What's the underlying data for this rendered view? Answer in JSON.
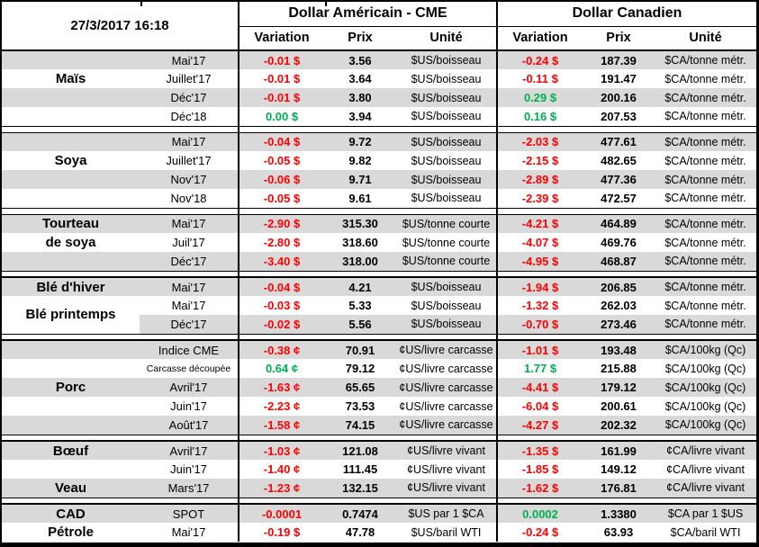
{
  "header": {
    "datetime": "27/3/2017 16:18",
    "us_title": "Dollar Américain - CME",
    "ca_title": "Dollar Canadien",
    "col_variation": "Variation",
    "col_prix": "Prix",
    "col_unite": "Unité"
  },
  "colors": {
    "negative": "#FF0000",
    "positive": "#00B050",
    "row_shade": "#D9D9D9"
  },
  "groups": [
    {
      "name": "Maïs",
      "labels": [
        {
          "row": 1,
          "text": "Maïs"
        }
      ],
      "rows": [
        {
          "month": "Mai'17",
          "us": [
            "-0.01 $",
            "3.56",
            "$US/boisseau"
          ],
          "ca": [
            "-0.24 $",
            "187.39",
            "$CA/tonne métr."
          ]
        },
        {
          "month": "Juillet'17",
          "us": [
            "-0.01 $",
            "3.64",
            "$US/boisseau"
          ],
          "ca": [
            "-0.11 $",
            "191.47",
            "$CA/tonne métr."
          ]
        },
        {
          "month": "Déc'17",
          "us": [
            "-0.01 $",
            "3.80",
            "$US/boisseau"
          ],
          "ca": [
            "0.29 $",
            "200.16",
            "$CA/tonne métr."
          ]
        },
        {
          "month": "Déc'18",
          "us": [
            "0.00 $",
            "3.94",
            "$US/boisseau"
          ],
          "ca": [
            "0.16 $",
            "207.53",
            "$CA/tonne métr."
          ]
        }
      ]
    },
    {
      "name": "Soya",
      "labels": [
        {
          "row": 1,
          "text": "Soya"
        }
      ],
      "rows": [
        {
          "month": "Mai'17",
          "us": [
            "-0.04 $",
            "9.72",
            "$US/boisseau"
          ],
          "ca": [
            "-2.03 $",
            "477.61",
            "$CA/tonne métr."
          ]
        },
        {
          "month": "Juillet'17",
          "us": [
            "-0.05 $",
            "9.82",
            "$US/boisseau"
          ],
          "ca": [
            "-2.15 $",
            "482.65",
            "$CA/tonne métr."
          ]
        },
        {
          "month": "Nov'17",
          "us": [
            "-0.06 $",
            "9.71",
            "$US/boisseau"
          ],
          "ca": [
            "-2.89 $",
            "477.36",
            "$CA/tonne métr."
          ]
        },
        {
          "month": "Nov'18",
          "us": [
            "-0.05 $",
            "9.61",
            "$US/boisseau"
          ],
          "ca": [
            "-2.39 $",
            "472.57",
            "$CA/tonne métr."
          ]
        }
      ]
    },
    {
      "name": "Tourteau de soya",
      "labels": [
        {
          "row": 0,
          "text": "Tourteau"
        },
        {
          "row": 1,
          "text": "de soya"
        }
      ],
      "rows": [
        {
          "month": "Mai'17",
          "us": [
            "-2.90 $",
            "315.30",
            "$US/tonne courte"
          ],
          "ca": [
            "-4.21 $",
            "464.89",
            "$CA/tonne métr."
          ]
        },
        {
          "month": "Juil'17",
          "us": [
            "-2.80 $",
            "318.60",
            "$US/tonne courte"
          ],
          "ca": [
            "-4.07 $",
            "469.76",
            "$CA/tonne métr."
          ]
        },
        {
          "month": "Déc'17",
          "us": [
            "-3.40 $",
            "318.00",
            "$US/tonne courte"
          ],
          "ca": [
            "-4.95 $",
            "468.87",
            "$CA/tonne métr."
          ]
        }
      ]
    },
    {
      "name": "Blé",
      "labels": [
        {
          "row": 0,
          "text": "Blé d'hiver"
        },
        {
          "row": 1,
          "text": "Blé printemps",
          "rowspan": 2
        }
      ],
      "rows": [
        {
          "month": "Mai'17",
          "us": [
            "-0.04 $",
            "4.21",
            "$US/boisseau"
          ],
          "ca": [
            "-1.94 $",
            "206.85",
            "$CA/tonne métr."
          ]
        },
        {
          "month": "Mai'17",
          "us": [
            "-0.03 $",
            "5.33",
            "$US/boisseau"
          ],
          "ca": [
            "-1.32 $",
            "262.03",
            "$CA/tonne métr."
          ]
        },
        {
          "month": "Déc'17",
          "us": [
            "-0.02 $",
            "5.56",
            "$US/boisseau"
          ],
          "ca": [
            "-0.70 $",
            "273.46",
            "$CA/tonne métr."
          ]
        }
      ]
    },
    {
      "name": "Porc",
      "labels": [
        {
          "row": 2,
          "text": "Porc"
        }
      ],
      "rows": [
        {
          "month": "Indice CME",
          "us": [
            "-0.38 ¢",
            "70.91",
            "¢US/livre carcasse"
          ],
          "ca": [
            "-1.01 $",
            "193.48",
            "$CA/100kg (Qc)"
          ]
        },
        {
          "month": "Carcasse découpée",
          "month_small": true,
          "us": [
            "0.64 ¢",
            "79.12",
            "¢US/livre carcasse"
          ],
          "ca": [
            "1.77 $",
            "215.88",
            "$CA/100kg (Qc)"
          ]
        },
        {
          "month": "Avril'17",
          "us": [
            "-1.63 ¢",
            "65.65",
            "¢US/livre carcasse"
          ],
          "ca": [
            "-4.41 $",
            "179.12",
            "$CA/100kg (Qc)"
          ]
        },
        {
          "month": "Juin'17",
          "us": [
            "-2.23 ¢",
            "73.53",
            "¢US/livre carcasse"
          ],
          "ca": [
            "-6.04 $",
            "200.61",
            "$CA/100kg (Qc)"
          ]
        },
        {
          "month": "Août'17",
          "us": [
            "-1.58 ¢",
            "74.15",
            "¢US/livre carcasse"
          ],
          "ca": [
            "-4.27 $",
            "202.32",
            "$CA/100kg (Qc)"
          ]
        }
      ]
    },
    {
      "name": "Bœuf / Veau",
      "labels": [
        {
          "row": 0,
          "text": "Bœuf"
        },
        {
          "row": 2,
          "text": "Veau"
        }
      ],
      "rows": [
        {
          "month": "Avril'17",
          "us": [
            "-1.03 ¢",
            "121.08",
            "¢US/livre vivant"
          ],
          "ca": [
            "-1.35 $",
            "161.99",
            "¢CA/livre vivant"
          ]
        },
        {
          "month": "Juin'17",
          "us": [
            "-1.40 ¢",
            "111.45",
            "¢US/livre vivant"
          ],
          "ca": [
            "-1.85 $",
            "149.12",
            "¢CA/livre vivant"
          ]
        },
        {
          "month": "Mars'17",
          "us": [
            "-1.23 ¢",
            "132.15",
            "¢US/livre vivant"
          ],
          "ca": [
            "-1.62 $",
            "176.81",
            "¢CA/livre vivant"
          ]
        }
      ]
    },
    {
      "name": "CAD / Pétrole",
      "labels": [
        {
          "row": 0,
          "text": "CAD"
        },
        {
          "row": 1,
          "text": "Pétrole"
        }
      ],
      "rows": [
        {
          "month": "SPOT",
          "us": [
            "-0.0001",
            "0.7474",
            "$US par 1 $CA"
          ],
          "ca": [
            "0.0002",
            "1.3380",
            "$CA par 1 $US"
          ]
        },
        {
          "month": "Mai'17",
          "us": [
            "-0.19 $",
            "47.78",
            "$US/baril WTI"
          ],
          "ca": [
            "-0.24 $",
            "63.93",
            "$CA/baril WTI"
          ]
        }
      ]
    }
  ]
}
